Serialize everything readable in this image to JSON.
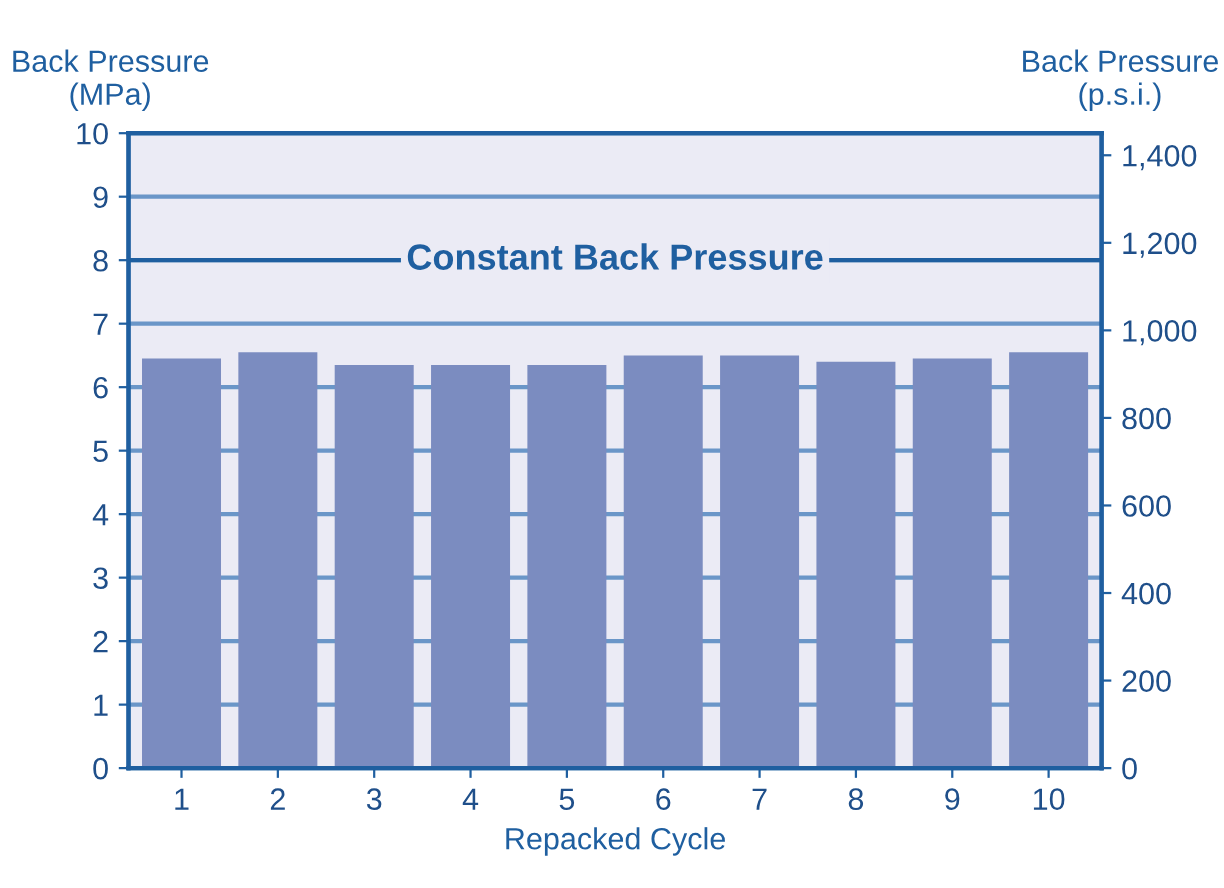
{
  "chart_data": {
    "type": "bar",
    "categories": [
      "1",
      "2",
      "3",
      "4",
      "5",
      "6",
      "7",
      "8",
      "9",
      "10"
    ],
    "values": [
      6.45,
      6.55,
      6.35,
      6.35,
      6.35,
      6.5,
      6.5,
      6.4,
      6.45,
      6.55
    ],
    "color": "#7b8cc0",
    "ylabel": "Back Pressure\n(MPa)",
    "y2label": "Back Pressure\n(p.s.i.)",
    "xlabel": "Repacked Cycle",
    "ylim": [
      0,
      10
    ],
    "yticks": [
      0,
      1,
      2,
      3,
      4,
      5,
      6,
      7,
      8,
      9,
      10
    ],
    "y2lim": [
      0,
      1450.4
    ],
    "y2ticks": [
      {
        "value": 0,
        "label": "0"
      },
      {
        "value": 200,
        "label": "200"
      },
      {
        "value": 400,
        "label": "400"
      },
      {
        "value": 600,
        "label": "600"
      },
      {
        "value": 800,
        "label": "800"
      },
      {
        "value": 1000,
        "label": "1,000"
      },
      {
        "value": 1200,
        "label": "1,200"
      },
      {
        "value": 1400,
        "label": "1,400"
      }
    ],
    "ref_lines": [
      {
        "axis": "y",
        "value": 8,
        "label": "Constant Back Pressure",
        "color": "#1f5fa0"
      }
    ],
    "grid": "y"
  }
}
